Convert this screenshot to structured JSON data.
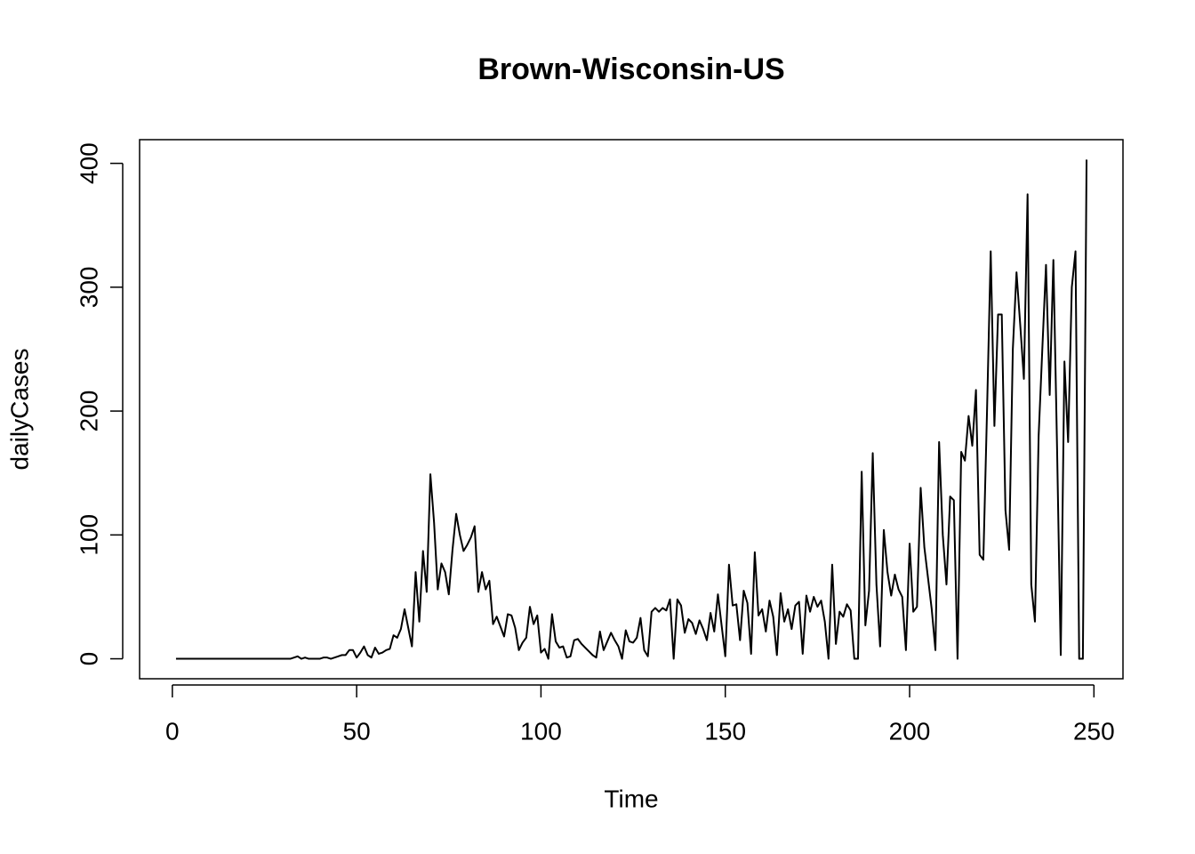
{
  "chart_data": {
    "type": "line",
    "title": "Brown-Wisconsin-US",
    "x_label": "Time",
    "y_label": "dailyCases",
    "x": [
      1,
      2,
      3,
      4,
      5,
      6,
      7,
      8,
      9,
      10,
      11,
      12,
      13,
      14,
      15,
      16,
      17,
      18,
      19,
      20,
      21,
      22,
      23,
      24,
      25,
      26,
      27,
      28,
      29,
      30,
      31,
      32,
      33,
      34,
      35,
      36,
      37,
      38,
      39,
      40,
      41,
      42,
      43,
      44,
      45,
      46,
      47,
      48,
      49,
      50,
      51,
      52,
      53,
      54,
      55,
      56,
      57,
      58,
      59,
      60,
      61,
      62,
      63,
      64,
      65,
      66,
      67,
      68,
      69,
      70,
      71,
      72,
      73,
      74,
      75,
      76,
      77,
      78,
      79,
      80,
      81,
      82,
      83,
      84,
      85,
      86,
      87,
      88,
      89,
      90,
      91,
      92,
      93,
      94,
      95,
      96,
      97,
      98,
      99,
      100,
      101,
      102,
      103,
      104,
      105,
      106,
      107,
      108,
      109,
      110,
      111,
      112,
      113,
      114,
      115,
      116,
      117,
      118,
      119,
      120,
      121,
      122,
      123,
      124,
      125,
      126,
      127,
      128,
      129,
      130,
      131,
      132,
      133,
      134,
      135,
      136,
      137,
      138,
      139,
      140,
      141,
      142,
      143,
      144,
      145,
      146,
      147,
      148,
      149,
      150,
      151,
      152,
      153,
      154,
      155,
      156,
      157,
      158,
      159,
      160,
      161,
      162,
      163,
      164,
      165,
      166,
      167,
      168,
      169,
      170,
      171,
      172,
      173,
      174,
      175,
      176,
      177,
      178,
      179,
      180,
      181,
      182,
      183,
      184,
      185,
      186,
      187,
      188,
      189,
      190,
      191,
      192,
      193,
      194,
      195,
      196,
      197,
      198,
      199,
      200,
      201,
      202,
      203,
      204,
      205,
      206,
      207,
      208,
      209,
      210,
      211,
      212,
      213,
      214,
      215,
      216,
      217,
      218,
      219,
      220,
      221,
      222,
      223,
      224,
      225,
      226,
      227,
      228,
      229,
      230,
      231,
      232,
      233,
      234,
      235,
      236,
      237,
      238,
      239,
      240,
      241,
      242,
      243,
      244,
      245,
      246,
      247,
      248
    ],
    "series": [
      {
        "name": "dailyCases",
        "color": "#000000",
        "values": [
          0,
          0,
          0,
          0,
          0,
          0,
          0,
          0,
          0,
          0,
          0,
          0,
          0,
          0,
          0,
          0,
          0,
          0,
          0,
          0,
          0,
          0,
          0,
          0,
          0,
          0,
          0,
          0,
          0,
          0,
          0,
          0,
          1,
          2,
          0,
          1,
          0,
          0,
          0,
          0,
          1,
          1,
          0,
          1,
          2,
          3,
          3,
          7,
          7,
          1,
          5,
          10,
          3,
          1,
          9,
          4,
          5,
          7,
          8,
          19,
          17,
          24,
          40,
          25,
          10,
          70,
          30,
          87,
          54,
          149,
          110,
          56,
          77,
          70,
          52,
          88,
          117,
          100,
          87,
          92,
          98,
          107,
          54,
          70,
          56,
          63,
          28,
          34,
          26,
          18,
          36,
          35,
          25,
          7,
          13,
          17,
          42,
          28,
          35,
          5,
          8,
          0,
          36,
          14,
          9,
          10,
          1,
          2,
          15,
          16,
          12,
          9,
          6,
          3,
          1,
          22,
          7,
          14,
          21,
          15,
          10,
          0,
          23,
          14,
          13,
          17,
          33,
          7,
          2,
          38,
          41,
          38,
          41,
          39,
          48,
          0,
          48,
          43,
          21,
          32,
          29,
          20,
          31,
          24,
          15,
          37,
          22,
          52,
          27,
          2,
          76,
          43,
          44,
          15,
          55,
          45,
          4,
          86,
          35,
          40,
          22,
          47,
          34,
          3,
          53,
          30,
          40,
          24,
          43,
          46,
          4,
          51,
          38,
          50,
          42,
          47,
          30,
          0,
          76,
          12,
          38,
          34,
          44,
          39,
          0,
          0,
          151,
          27,
          55,
          166,
          60,
          10,
          104,
          70,
          51,
          68,
          56,
          50,
          7,
          93,
          38,
          42,
          138,
          90,
          65,
          40,
          7,
          175,
          100,
          60,
          131,
          128,
          0,
          167,
          160,
          196,
          172,
          217,
          84,
          80,
          200,
          329,
          188,
          278,
          278,
          120,
          88,
          250,
          312,
          270,
          226,
          375,
          60,
          30,
          180,
          250,
          318,
          213,
          322,
          170,
          3,
          240,
          175,
          300,
          329,
          0,
          0,
          403
        ]
      }
    ],
    "xlim": [
      -8.88,
      257.88
    ],
    "ylim": [
      -16.12,
      419.12
    ],
    "xticks": [
      0,
      50,
      100,
      150,
      200,
      250
    ],
    "yticks": [
      0,
      100,
      200,
      300,
      400
    ]
  }
}
